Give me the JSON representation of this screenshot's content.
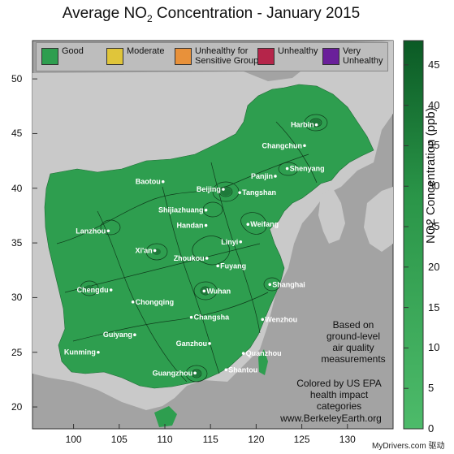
{
  "title": {
    "prefix": "Average NO",
    "subscript": "2",
    "suffix": " Concentration - January 2015"
  },
  "legend": [
    {
      "label": "Good",
      "color": "#2e9e4f"
    },
    {
      "label": "Moderate",
      "color": "#e0c53a"
    },
    {
      "label": "Unhealthy for\nSensitive Groups",
      "color": "#e8913a"
    },
    {
      "label": "Unhealthy",
      "color": "#b5254a"
    },
    {
      "label": "Very\nUnhealthy",
      "color": "#6a1f9a"
    }
  ],
  "annotations": {
    "based_on": "Based on\nground-level\nair quality\nmeasurements",
    "colored_by": "Colored by US EPA\nhealth impact categories",
    "website": "www.BerkeleyEarth.org"
  },
  "x_ticks": [
    "100",
    "105",
    "110",
    "115",
    "120",
    "125",
    "130"
  ],
  "y_ticks": [
    "20",
    "25",
    "30",
    "35",
    "40",
    "45",
    "50"
  ],
  "colorbar": {
    "label": "NO2 Concentration (ppb)",
    "ticks": [
      "0",
      "5",
      "10",
      "15",
      "20",
      "25",
      "30",
      "35",
      "40",
      "45"
    ],
    "min_color": "#4dbb6a",
    "max_color": "#0b5a25"
  },
  "cities": [
    {
      "name": "Harbin",
      "lon": 126.6,
      "lat": 45.8
    },
    {
      "name": "Changchun",
      "lon": 125.3,
      "lat": 43.9
    },
    {
      "name": "Shenyang",
      "lon": 123.4,
      "lat": 41.8
    },
    {
      "name": "Baotou",
      "lon": 109.8,
      "lat": 40.6
    },
    {
      "name": "Panjin",
      "lon": 122.1,
      "lat": 41.1
    },
    {
      "name": "Beijing",
      "lon": 116.4,
      "lat": 39.9
    },
    {
      "name": "Tangshan",
      "lon": 118.2,
      "lat": 39.6
    },
    {
      "name": "Shijiazhuang",
      "lon": 114.5,
      "lat": 38.0
    },
    {
      "name": "Handan",
      "lon": 114.5,
      "lat": 36.6
    },
    {
      "name": "Weifang",
      "lon": 119.1,
      "lat": 36.7
    },
    {
      "name": "Lanzhou",
      "lon": 103.8,
      "lat": 36.1
    },
    {
      "name": "Linyi",
      "lon": 118.3,
      "lat": 35.1
    },
    {
      "name": "Xi'an",
      "lon": 108.9,
      "lat": 34.3
    },
    {
      "name": "Zhoukou",
      "lon": 114.6,
      "lat": 33.6
    },
    {
      "name": "Fuyang",
      "lon": 115.8,
      "lat": 32.9
    },
    {
      "name": "Shanghai",
      "lon": 121.5,
      "lat": 31.2
    },
    {
      "name": "Chengdu",
      "lon": 104.1,
      "lat": 30.7
    },
    {
      "name": "Wuhan",
      "lon": 114.3,
      "lat": 30.6
    },
    {
      "name": "Chongqing",
      "lon": 106.5,
      "lat": 29.6
    },
    {
      "name": "Changsha",
      "lon": 112.9,
      "lat": 28.2
    },
    {
      "name": "Wenzhou",
      "lon": 120.7,
      "lat": 28.0
    },
    {
      "name": "Guiyang",
      "lon": 106.7,
      "lat": 26.6
    },
    {
      "name": "Ganzhou",
      "lon": 114.9,
      "lat": 25.8
    },
    {
      "name": "Kunming",
      "lon": 102.7,
      "lat": 25.0
    },
    {
      "name": "Quanzhou",
      "lon": 118.6,
      "lat": 24.9
    },
    {
      "name": "Guangzhou",
      "lon": 113.3,
      "lat": 23.1
    },
    {
      "name": "Shantou",
      "lon": 116.7,
      "lat": 23.4
    }
  ],
  "watermark": "MyDrivers.com 驱动"
}
